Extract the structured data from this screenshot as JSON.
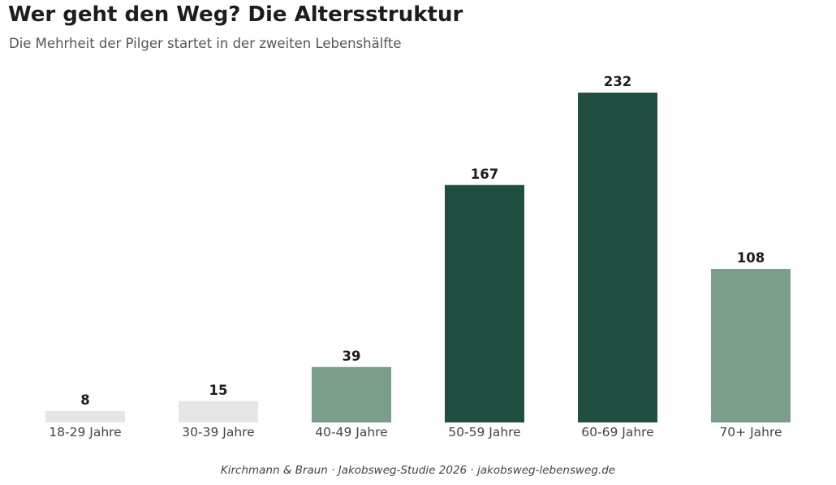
{
  "title": "Wer geht den Weg? Die Altersstruktur",
  "subtitle": "Die Mehrheit der Pilger startet in der zweiten Lebenshälfte",
  "source": "Kirchmann & Braun · Jakobsweg-Studie 2026 · jakobsweg-lebensweg.de",
  "chart_data": {
    "type": "bar",
    "title": "Wer geht den Weg? Die Altersstruktur",
    "subtitle": "Die Mehrheit der Pilger startet in der zweiten Lebenshälfte",
    "categories": [
      "18-29 Jahre",
      "30-39 Jahre",
      "40-49 Jahre",
      "50-59 Jahre",
      "60-69 Jahre",
      "70+ Jahre"
    ],
    "values": [
      8,
      15,
      39,
      167,
      232,
      108
    ],
    "colors": [
      "#e6e6e6",
      "#e6e6e6",
      "#7a9e8b",
      "#1f4f40",
      "#1f4f40",
      "#7a9e8b"
    ],
    "xlabel": "",
    "ylabel": "",
    "ylim": [
      0,
      232
    ],
    "grid": false,
    "legend": "none"
  }
}
